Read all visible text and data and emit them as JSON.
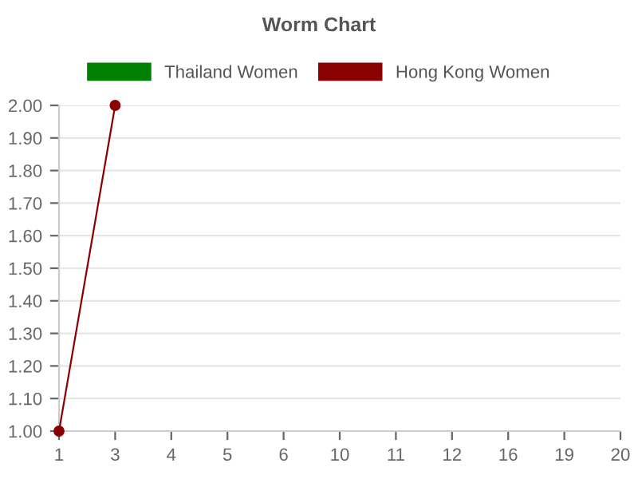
{
  "chart_data": {
    "type": "line",
    "title": "Worm Chart",
    "categories": [
      "1",
      "3",
      "4",
      "5",
      "6",
      "10",
      "11",
      "12",
      "16",
      "19",
      "20"
    ],
    "series": [
      {
        "name": "Thailand Women",
        "color": "#008000",
        "values": [
          null,
          null,
          null,
          null,
          null,
          null,
          null,
          null,
          null,
          null,
          null
        ]
      },
      {
        "name": "Hong Kong Women",
        "color": "#8b0000",
        "values": [
          1.0,
          2.0,
          null,
          null,
          null,
          null,
          null,
          null,
          null,
          null,
          null
        ]
      }
    ],
    "ylim": [
      1.0,
      2.0
    ],
    "yticks": [
      {
        "value": 1.0,
        "label": "1.00"
      },
      {
        "value": 1.1,
        "label": "1.10"
      },
      {
        "value": 1.2,
        "label": "1.20"
      },
      {
        "value": 1.3,
        "label": "1.30"
      },
      {
        "value": 1.4,
        "label": "1.40"
      },
      {
        "value": 1.5,
        "label": "1.50"
      },
      {
        "value": 1.6,
        "label": "1.60"
      },
      {
        "value": 1.7,
        "label": "1.70"
      },
      {
        "value": 1.8,
        "label": "1.80"
      },
      {
        "value": 1.9,
        "label": "1.90"
      },
      {
        "value": 2.0,
        "label": "2.00"
      }
    ],
    "grid": "y",
    "legend": "top",
    "marker": "circle",
    "line_style": "solid"
  }
}
